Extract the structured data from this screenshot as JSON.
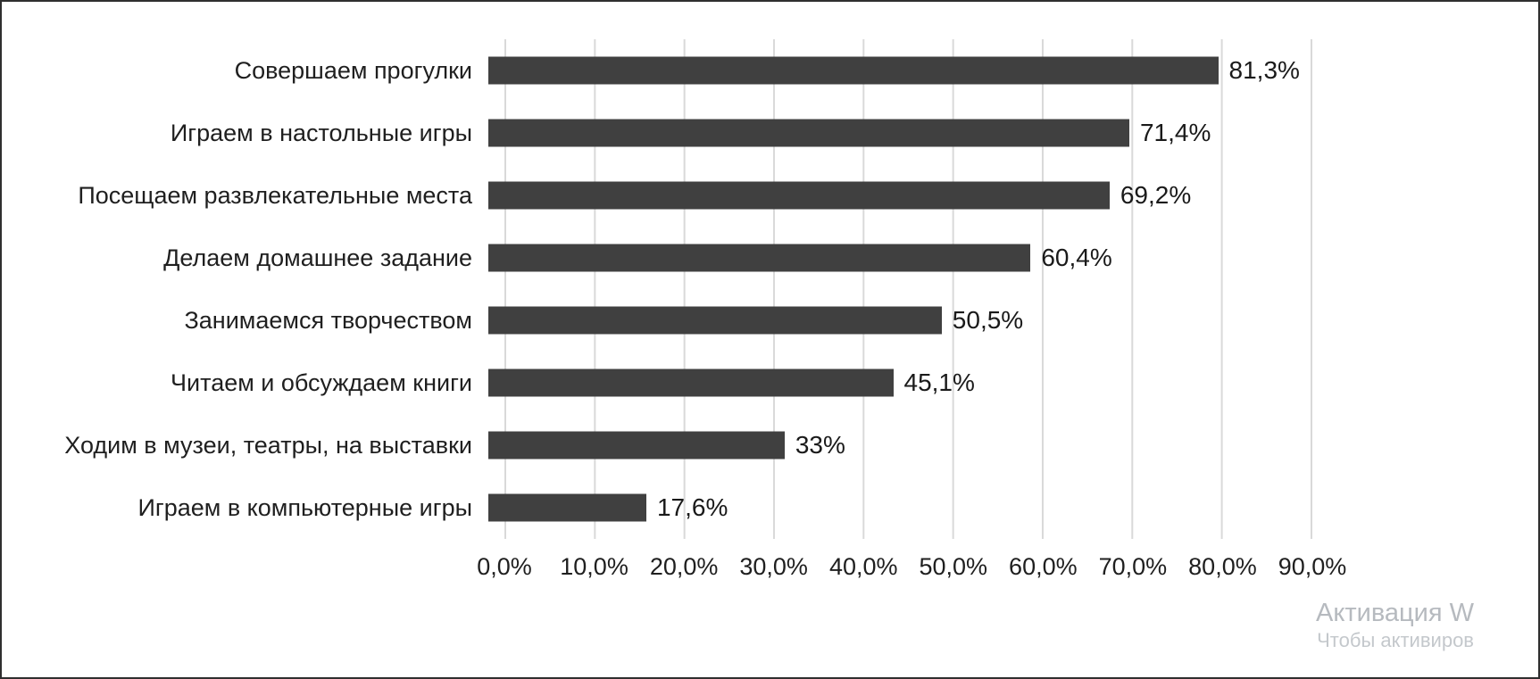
{
  "chart_data": {
    "type": "bar",
    "orientation": "horizontal",
    "title": "",
    "categories": [
      "Совершаем прогулки",
      "Играем в настольные игры",
      "Посещаем развлекательные места",
      "Делаем домашнее задание",
      "Занимаемся творчеством",
      "Читаем и обсуждаем книги",
      "Ходим в музеи, театры, на выставки",
      "Играем в компьютерные игры"
    ],
    "values": [
      81.3,
      71.4,
      69.2,
      60.4,
      50.5,
      45.1,
      33,
      17.6
    ],
    "value_labels": [
      "81,3%",
      "71,4%",
      "69,2%",
      "60,4%",
      "50,5%",
      "45,1%",
      "33%",
      "17,6%"
    ],
    "x_ticks": [
      "0,0%",
      "10,0%",
      "20,0%",
      "30,0%",
      "40,0%",
      "50,0%",
      "60,0%",
      "70,0%",
      "80,0%",
      "90,0%"
    ],
    "xlim": [
      0,
      90
    ],
    "grid": true,
    "legend": false,
    "bar_color": "#404040",
    "gridline_color": "#d9d9d9"
  },
  "watermark": {
    "line1": "Активация W",
    "line2": "Чтобы активиров"
  }
}
